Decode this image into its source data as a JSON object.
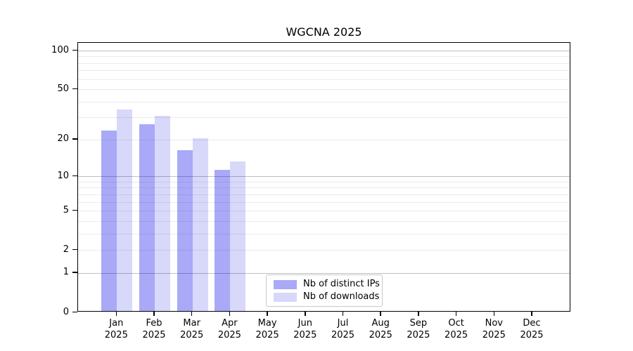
{
  "title": "WGCNA 2025",
  "legend": {
    "entries": [
      {
        "label": "Nb of distinct IPs",
        "color": "#a9a9f8"
      },
      {
        "label": "Nb of downloads",
        "color": "#d8d8fa"
      }
    ]
  },
  "colors": {
    "distinct_ips_bar": "#a9a9f8",
    "downloads_bar": "#d8d8fa",
    "axis": "#000000",
    "decade_gridline": "rgba(0,0,0,0.25)",
    "minor_gridline": "rgba(0,0,0,0.08)"
  },
  "chart_data": {
    "type": "bar",
    "title": "WGCNA 2025",
    "categories": [
      "Jan 2025",
      "Feb 2025",
      "Mar 2025",
      "Apr 2025",
      "May 2025",
      "Jun 2025",
      "Jul 2025",
      "Aug 2025",
      "Sep 2025",
      "Oct 2025",
      "Nov 2025",
      "Dec 2025"
    ],
    "category_line1": [
      "Jan",
      "Feb",
      "Mar",
      "Apr",
      "May",
      "Jun",
      "Jul",
      "Aug",
      "Sep",
      "Oct",
      "Nov",
      "Dec"
    ],
    "category_line2": [
      "2025",
      "2025",
      "2025",
      "2025",
      "2025",
      "2025",
      "2025",
      "2025",
      "2025",
      "2025",
      "2025",
      "2025"
    ],
    "series": [
      {
        "name": "Nb of distinct IPs",
        "values": [
          23,
          26,
          16,
          11,
          null,
          null,
          null,
          null,
          null,
          null,
          null,
          null
        ]
      },
      {
        "name": "Nb of downloads",
        "values": [
          34,
          30,
          20,
          13,
          null,
          null,
          null,
          null,
          null,
          null,
          null,
          null
        ]
      }
    ],
    "xlabel": "",
    "ylabel": "",
    "yscale": "log1p",
    "ylim": [
      0,
      115
    ],
    "y_ticks": [
      0,
      1,
      2,
      5,
      10,
      20,
      50,
      100
    ],
    "y_decade_gridlines": [
      1,
      10,
      100
    ],
    "y_minor_gridlines": [
      2,
      3,
      4,
      5,
      6,
      7,
      8,
      9,
      20,
      30,
      40,
      50,
      60,
      70,
      80,
      90
    ],
    "grid": true,
    "legend_position": "bottom-center-inside"
  }
}
